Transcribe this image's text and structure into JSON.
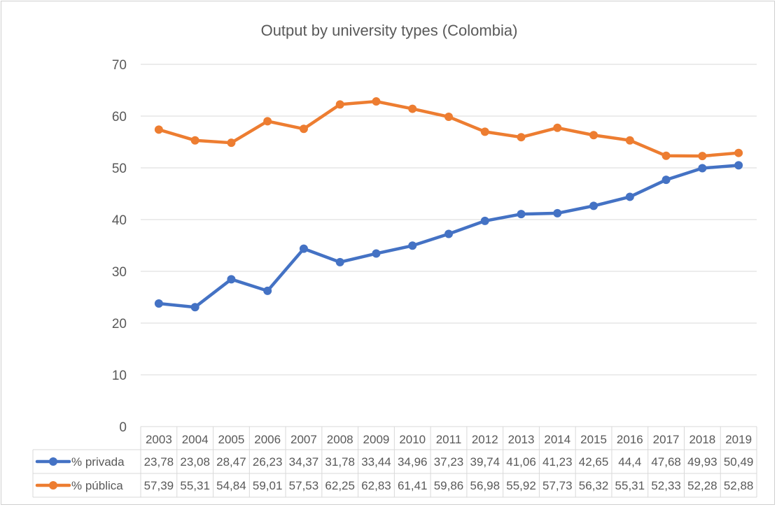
{
  "chart_data": {
    "type": "line",
    "title": "Output by university types (Colombia)",
    "xlabel": "",
    "ylabel": "",
    "ylim": [
      0,
      70
    ],
    "yticks": [
      0,
      10,
      20,
      30,
      40,
      50,
      60,
      70
    ],
    "grid": true,
    "legend": "data-table",
    "categories": [
      "2003",
      "2004",
      "2005",
      "2006",
      "2007",
      "2008",
      "2009",
      "2010",
      "2011",
      "2012",
      "2013",
      "2014",
      "2015",
      "2016",
      "2017",
      "2018",
      "2019"
    ],
    "series": [
      {
        "name": "% privada",
        "color": "#4472c4",
        "values": [
          23.78,
          23.08,
          28.47,
          26.23,
          34.37,
          31.78,
          33.44,
          34.96,
          37.23,
          39.74,
          41.06,
          41.23,
          42.65,
          44.4,
          47.68,
          49.93,
          50.49
        ],
        "labels": [
          "23,78",
          "23,08",
          "28,47",
          "26,23",
          "34,37",
          "31,78",
          "33,44",
          "34,96",
          "37,23",
          "39,74",
          "41,06",
          "41,23",
          "42,65",
          "44,4",
          "47,68",
          "49,93",
          "50,49"
        ]
      },
      {
        "name": "% pública",
        "color": "#ed7d31",
        "values": [
          57.39,
          55.31,
          54.84,
          59.01,
          57.53,
          62.25,
          62.83,
          61.41,
          59.86,
          56.98,
          55.92,
          57.73,
          56.32,
          55.31,
          52.33,
          52.28,
          52.88
        ],
        "labels": [
          "57,39",
          "55,31",
          "54,84",
          "59,01",
          "57,53",
          "62,25",
          "62,83",
          "61,41",
          "59,86",
          "56,98",
          "55,92",
          "57,73",
          "56,32",
          "55,31",
          "52,33",
          "52,28",
          "52,88"
        ]
      }
    ]
  }
}
